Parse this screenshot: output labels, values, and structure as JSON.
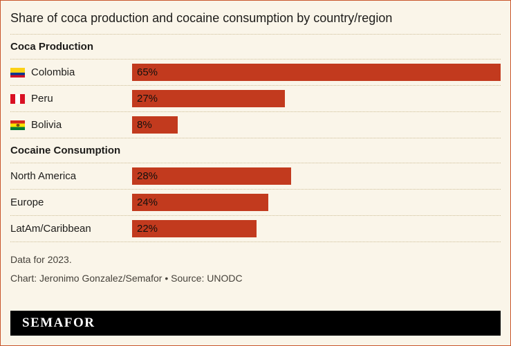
{
  "title": "Share of coca production and cocaine consumption by country/region",
  "chart_data": {
    "type": "bar",
    "orientation": "horizontal",
    "unit": "%",
    "xlim": [
      0,
      65
    ],
    "bar_color": "#c23a1e",
    "sections": [
      {
        "header": "Coca Production",
        "rows": [
          {
            "label": "Colombia",
            "flag": "flag-colombia",
            "value": 65,
            "value_label": "65%"
          },
          {
            "label": "Peru",
            "flag": "flag-peru",
            "value": 27,
            "value_label": "27%"
          },
          {
            "label": "Bolivia",
            "flag": "flag-bolivia",
            "value": 8,
            "value_label": "8%"
          }
        ]
      },
      {
        "header": "Cocaine Consumption",
        "rows": [
          {
            "label": "North America",
            "flag": null,
            "value": 28,
            "value_label": "28%"
          },
          {
            "label": "Europe",
            "flag": null,
            "value": 24,
            "value_label": "24%"
          },
          {
            "label": "LatAm/Caribbean",
            "flag": null,
            "value": 22,
            "value_label": "22%"
          }
        ]
      }
    ]
  },
  "footer": {
    "note": "Data for 2023.",
    "credit": "Chart: Jeronimo Gonzalez/Semafor • Source: UNODC"
  },
  "brand": {
    "logo_text": "SEMAFOR"
  },
  "colors": {
    "background": "#faf5e9",
    "bar": "#c23a1e",
    "border": "#c8552a",
    "divider": "#cdbd96"
  }
}
